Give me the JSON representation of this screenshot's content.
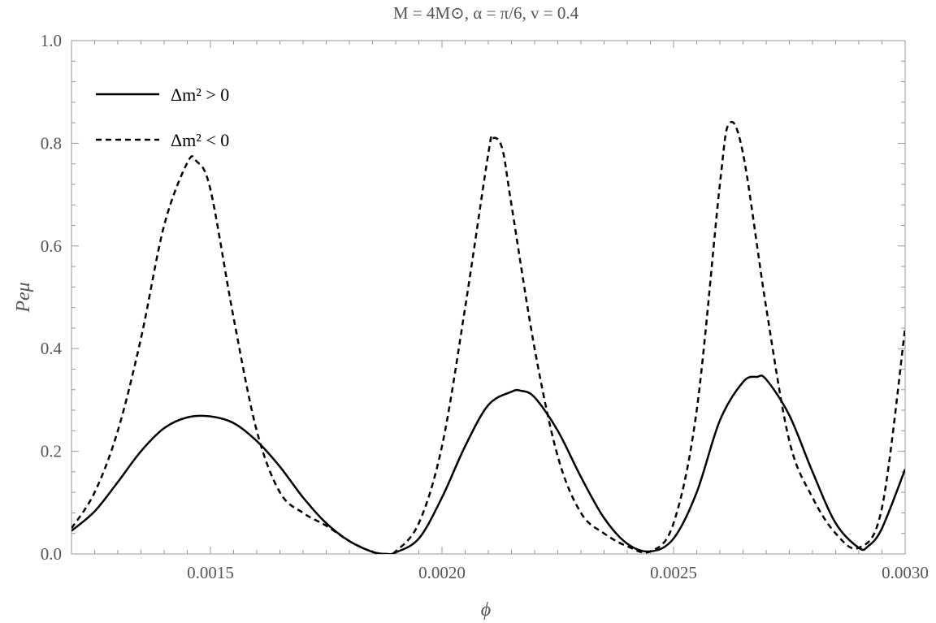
{
  "chart_data": {
    "type": "line",
    "title": "M = 4M⊙, α = π/6, v = 0.4",
    "xlabel": "ϕ",
    "ylabel": "Peμ",
    "xlim": [
      0.0012,
      0.003
    ],
    "ylim": [
      0.0,
      1.0
    ],
    "x_ticks": [
      "0.0015",
      "0.0020",
      "0.0025",
      "0.0030"
    ],
    "y_ticks": [
      "0.0",
      "0.2",
      "0.4",
      "0.6",
      "0.8",
      "1.0"
    ],
    "legend_position": "top-left",
    "grid": false,
    "series": [
      {
        "name": "Δm² > 0",
        "style": "solid",
        "color": "#000000",
        "points": [
          [
            0.0012,
            0.045
          ],
          [
            0.00125,
            0.083
          ],
          [
            0.0013,
            0.14
          ],
          [
            0.00135,
            0.2
          ],
          [
            0.0014,
            0.245
          ],
          [
            0.00145,
            0.266
          ],
          [
            0.0015,
            0.268
          ],
          [
            0.00155,
            0.255
          ],
          [
            0.0016,
            0.22
          ],
          [
            0.00165,
            0.17
          ],
          [
            0.0017,
            0.11
          ],
          [
            0.00175,
            0.06
          ],
          [
            0.0018,
            0.025
          ],
          [
            0.00185,
            0.004
          ],
          [
            0.00188,
            0.0
          ],
          [
            0.0019,
            0.003
          ],
          [
            0.00195,
            0.03
          ],
          [
            0.002,
            0.11
          ],
          [
            0.00205,
            0.21
          ],
          [
            0.0021,
            0.29
          ],
          [
            0.00215,
            0.316
          ],
          [
            0.00217,
            0.318
          ],
          [
            0.0022,
            0.305
          ],
          [
            0.00225,
            0.24
          ],
          [
            0.0023,
            0.15
          ],
          [
            0.00235,
            0.07
          ],
          [
            0.0024,
            0.02
          ],
          [
            0.00245,
            0.005
          ],
          [
            0.0025,
            0.03
          ],
          [
            0.00255,
            0.12
          ],
          [
            0.0026,
            0.26
          ],
          [
            0.00265,
            0.335
          ],
          [
            0.00268,
            0.345
          ],
          [
            0.0027,
            0.34
          ],
          [
            0.00275,
            0.27
          ],
          [
            0.0028,
            0.16
          ],
          [
            0.00285,
            0.06
          ],
          [
            0.0029,
            0.012
          ],
          [
            0.00292,
            0.015
          ],
          [
            0.00295,
            0.05
          ],
          [
            0.003,
            0.165
          ]
        ]
      },
      {
        "name": "Δm² < 0",
        "style": "dashed",
        "color": "#000000",
        "points": [
          [
            0.0012,
            0.05
          ],
          [
            0.00125,
            0.12
          ],
          [
            0.0013,
            0.24
          ],
          [
            0.00135,
            0.42
          ],
          [
            0.0014,
            0.64
          ],
          [
            0.00145,
            0.762
          ],
          [
            0.00147,
            0.765
          ],
          [
            0.0015,
            0.71
          ],
          [
            0.00155,
            0.46
          ],
          [
            0.0016,
            0.24
          ],
          [
            0.00165,
            0.12
          ],
          [
            0.0017,
            0.08
          ],
          [
            0.00175,
            0.055
          ],
          [
            0.0018,
            0.025
          ],
          [
            0.00185,
            0.004
          ],
          [
            0.00188,
            0.0
          ],
          [
            0.0019,
            0.005
          ],
          [
            0.00195,
            0.06
          ],
          [
            0.002,
            0.21
          ],
          [
            0.00205,
            0.48
          ],
          [
            0.0021,
            0.78
          ],
          [
            0.00211,
            0.81
          ],
          [
            0.00213,
            0.79
          ],
          [
            0.00215,
            0.68
          ],
          [
            0.0022,
            0.4
          ],
          [
            0.00225,
            0.19
          ],
          [
            0.0023,
            0.08
          ],
          [
            0.00235,
            0.04
          ],
          [
            0.0024,
            0.015
          ],
          [
            0.00245,
            0.005
          ],
          [
            0.0025,
            0.06
          ],
          [
            0.00255,
            0.28
          ],
          [
            0.0026,
            0.72
          ],
          [
            0.00262,
            0.838
          ],
          [
            0.00265,
            0.78
          ],
          [
            0.0027,
            0.48
          ],
          [
            0.00275,
            0.22
          ],
          [
            0.0028,
            0.11
          ],
          [
            0.00285,
            0.04
          ],
          [
            0.0029,
            0.012
          ],
          [
            0.00295,
            0.09
          ],
          [
            0.003,
            0.44
          ]
        ]
      }
    ]
  }
}
